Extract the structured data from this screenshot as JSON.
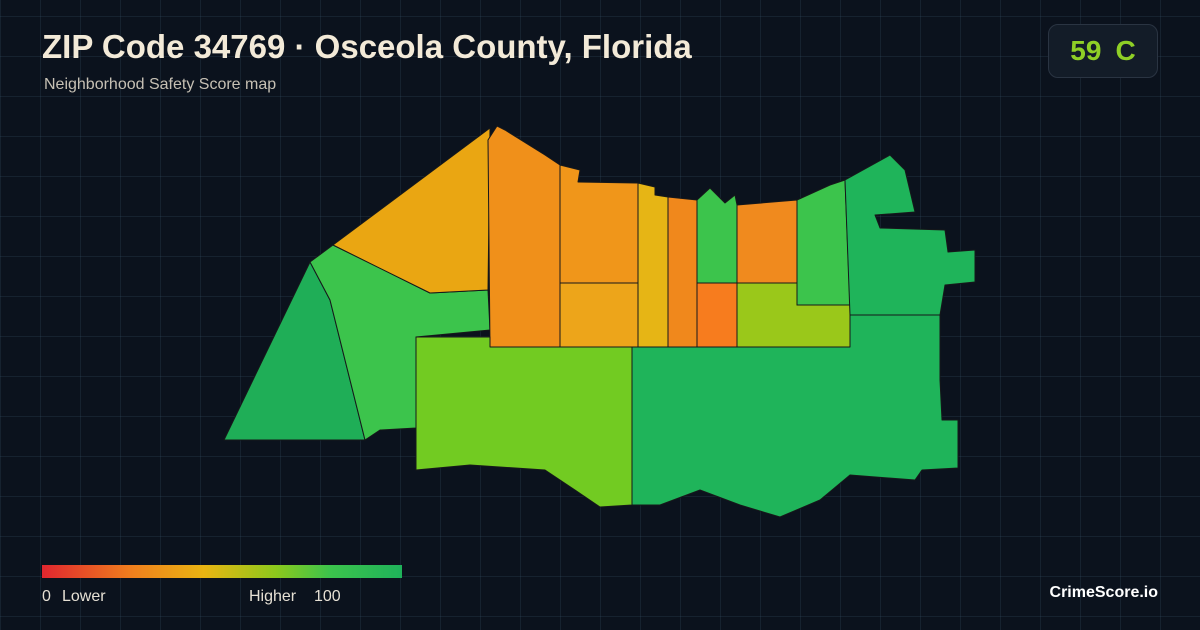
{
  "header": {
    "title": "ZIP Code 34769 · Osceola County, Florida",
    "subtitle": "Neighborhood Safety Score map"
  },
  "score": {
    "value": 59,
    "grade": "C"
  },
  "legend": {
    "min": 0,
    "min_label": "Lower",
    "max_label": "Higher",
    "max": 100
  },
  "brand": "CrimeScore.io"
}
